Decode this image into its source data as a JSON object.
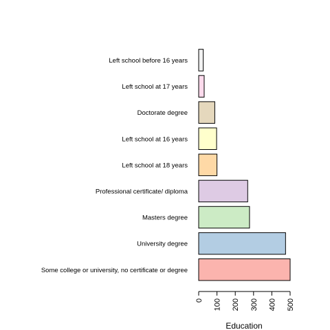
{
  "chart_data": {
    "type": "bar",
    "orientation": "horizontal",
    "categories": [
      "Some college or university, no certificate or degree",
      "University degree",
      "Masters degree",
      "Professional certificate/ diploma",
      "Left school at 18 years",
      "Left school at 16 years",
      "Doctorate degree",
      "Left school at 17 years",
      "Left school before 16 years"
    ],
    "values": [
      500,
      475,
      278,
      268,
      100,
      98,
      88,
      30,
      25
    ],
    "colors": [
      "#FBB4AE",
      "#B3CDE3",
      "#CCEBC5",
      "#DECBE4",
      "#FED9A6",
      "#FFFFCC",
      "#E5D8BD",
      "#FDDAEC",
      "#F2F2F2"
    ],
    "xlabel": "Education",
    "ylabel": "",
    "title": "",
    "xlim": [
      0,
      500
    ],
    "xticks": [
      "0",
      "100",
      "200",
      "300",
      "400",
      "500"
    ],
    "grid": false
  }
}
